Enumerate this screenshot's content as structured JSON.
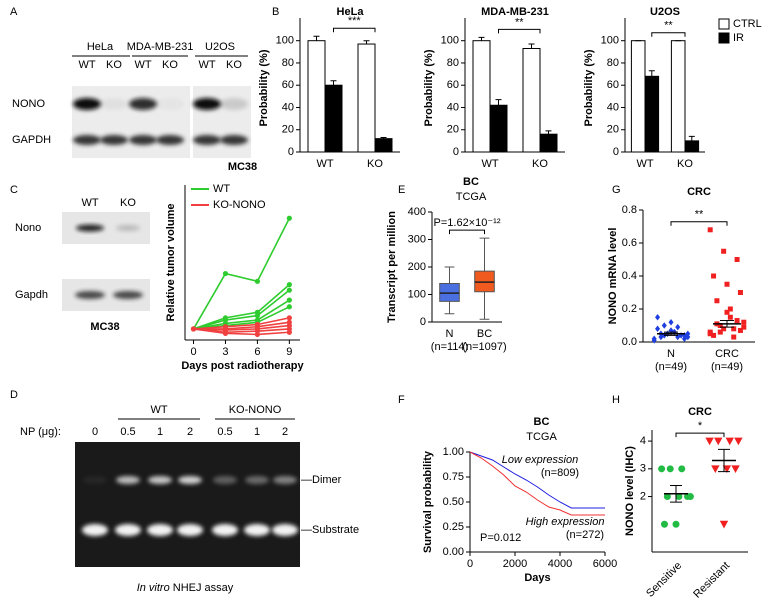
{
  "panel_labels": [
    "A",
    "B",
    "C",
    "D",
    "E",
    "F",
    "G",
    "H"
  ],
  "blot_a": {
    "cell_lines": [
      "HeLa",
      "MDA-MB-231",
      "U2OS"
    ],
    "genotypes": [
      "WT",
      "KO",
      "WT",
      "KO",
      "WT",
      "KO"
    ],
    "rows": [
      "NONO",
      "GAPDH"
    ]
  },
  "blot_c": {
    "genotypes": [
      "WT",
      "KO"
    ],
    "rows": [
      "Nono",
      "Gapdh"
    ],
    "caption": "MC38"
  },
  "gel_d": {
    "groups": [
      "WT",
      "KO-NONO"
    ],
    "lane_title": "NP (μg):",
    "lanes": [
      "0",
      "0.5",
      "1",
      "2",
      "0.5",
      "1",
      "2"
    ],
    "bands": [
      "—Dimer",
      "—Substrate"
    ],
    "caption_italic": "In vitro",
    "caption": " NHEJ assay"
  },
  "chart_data": [
    {
      "type": "bar",
      "title": "HeLa",
      "ylabel": "Probability (%)",
      "categories": [
        "WT",
        "KO"
      ],
      "series": [
        {
          "color": "#ffffff",
          "values": [
            100,
            97
          ],
          "errors": [
            4,
            3
          ]
        },
        {
          "color": "#000000",
          "values": [
            60,
            12
          ],
          "errors": [
            4,
            1
          ]
        }
      ],
      "ylim": [
        0,
        115
      ],
      "yticks": [
        0,
        20,
        40,
        60,
        80,
        100
      ],
      "annotation": "***"
    },
    {
      "type": "bar",
      "title": "MDA-MB-231",
      "ylabel": "Probability (%)",
      "categories": [
        "WT",
        "KO"
      ],
      "series": [
        {
          "color": "#ffffff",
          "values": [
            100,
            93
          ],
          "errors": [
            3,
            4
          ]
        },
        {
          "color": "#000000",
          "values": [
            42,
            16
          ],
          "errors": [
            5,
            3
          ]
        }
      ],
      "ylim": [
        0,
        115
      ],
      "yticks": [
        0,
        20,
        40,
        60,
        80,
        100
      ],
      "annotation": "**"
    },
    {
      "type": "bar",
      "title": "U2OS",
      "ylabel": "Probability (%)",
      "categories": [
        "WT",
        "KO"
      ],
      "series": [
        {
          "name": "CTRL",
          "color": "#ffffff",
          "values": [
            100,
            100
          ],
          "errors": [
            0,
            0
          ]
        },
        {
          "name": "IR",
          "color": "#000000",
          "values": [
            68,
            10
          ],
          "errors": [
            5,
            4
          ]
        }
      ],
      "ylim": [
        0,
        115
      ],
      "yticks": [
        0,
        20,
        40,
        60,
        80,
        100
      ],
      "annotation": "**",
      "legend": "upper right"
    },
    {
      "type": "line",
      "title": "MC38",
      "xlabel": "Days post radiotherapy",
      "ylabel": "Relative tumor volume",
      "x": [
        0,
        3,
        6,
        9
      ],
      "xlim": [
        -0.8,
        10
      ],
      "xticks": [
        0,
        3,
        6,
        9
      ],
      "ylim": [
        0,
        14
      ],
      "markers": true,
      "legend": "upper left",
      "series": [
        {
          "name": "WT",
          "color": "#2ecc2e",
          "values": [
            1,
            6,
            5.3,
            11
          ]
        },
        {
          "color": "#2ecc2e",
          "values": [
            1,
            2,
            2.5,
            5
          ]
        },
        {
          "color": "#2ecc2e",
          "values": [
            1,
            1.8,
            2.2,
            4.5
          ]
        },
        {
          "color": "#2ecc2e",
          "values": [
            1,
            1.5,
            1.8,
            3.6
          ]
        },
        {
          "color": "#2ecc2e",
          "values": [
            1,
            1.3,
            1.6,
            3
          ]
        },
        {
          "name": "KO-NONO",
          "color": "#f04040",
          "values": [
            1,
            1.2,
            1.4,
            2
          ]
        },
        {
          "color": "#f04040",
          "values": [
            1,
            1,
            1.2,
            1.6
          ]
        },
        {
          "color": "#f04040",
          "values": [
            1,
            0.9,
            1,
            1.3
          ]
        },
        {
          "color": "#f04040",
          "values": [
            1,
            0.7,
            0.8,
            1
          ]
        },
        {
          "color": "#f04040",
          "values": [
            1,
            0.6,
            0.5,
            0.7
          ]
        }
      ]
    },
    {
      "type": "box",
      "title": "BC",
      "subtitle": "TCGA",
      "ylabel": "Transcript per million",
      "annotation": "P=1.62×10⁻¹²",
      "categories": [
        "N",
        "BC"
      ],
      "counts": [
        "(n=114)",
        "(n=1097)"
      ],
      "colors": [
        "#4a6fe0",
        "#f05a1e"
      ],
      "boxes": [
        [
          30,
          75,
          105,
          140,
          200
        ],
        [
          10,
          110,
          145,
          185,
          305
        ]
      ],
      "ylim": [
        0,
        400
      ],
      "yticks": [
        0,
        100,
        200,
        300,
        400
      ]
    },
    {
      "type": "line",
      "title": "BC",
      "subtitle": "TCGA",
      "xlabel": "Days",
      "ylabel": "Survival probability",
      "annotation": "P=0.012",
      "x": [
        0,
        500,
        1000,
        1500,
        2000,
        2500,
        3000,
        3500,
        4000,
        4500,
        6000
      ],
      "xlim": [
        0,
        6000
      ],
      "xticks": [
        0,
        2000,
        4000,
        6000
      ],
      "ylim": [
        0,
        1
      ],
      "yticks": [
        {
          "value": 0,
          "label": "0.00"
        },
        {
          "value": 0.25,
          "label": "0.25"
        },
        {
          "value": 0.5,
          "label": "0.50"
        },
        {
          "value": 0.75,
          "label": "0.75"
        },
        {
          "value": 1,
          "label": "1.00"
        }
      ],
      "series": [
        {
          "name": "Low expression",
          "count": "(n=809)",
          "color": "#1f1fe0",
          "values": [
            1,
            0.96,
            0.92,
            0.85,
            0.78,
            0.72,
            0.65,
            0.57,
            0.5,
            0.44,
            0.44
          ]
        },
        {
          "name": "High expression",
          "count": "(n=272)",
          "color": "#f03030",
          "values": [
            1,
            0.94,
            0.86,
            0.77,
            0.66,
            0.6,
            0.52,
            0.45,
            0.42,
            0.37,
            0.37
          ]
        }
      ]
    },
    {
      "type": "strip",
      "title": "CRC",
      "ylabel": "NONO mRNA level",
      "annotation": "**",
      "categories": [
        "N",
        "CRC"
      ],
      "counts": [
        "(n=49)",
        "(n=49)"
      ],
      "colors": [
        "#1f3fe0",
        "#f02020"
      ],
      "markers": [
        "diamond",
        "square"
      ],
      "points": [
        [
          0.02,
          0.03,
          0.04,
          0.05,
          0.06,
          0.03,
          0.02,
          0.07,
          0.08,
          0.04,
          0.05,
          0.01,
          0.09,
          0.1,
          0.03,
          0.06,
          0.05,
          0.04,
          0.12,
          0.15
        ],
        [
          0.05,
          0.08,
          0.1,
          0.12,
          0.2,
          0.25,
          0.3,
          0.35,
          0.4,
          0.5,
          0.55,
          0.68,
          0.03,
          0.06,
          0.09,
          0.15,
          0.11,
          0.07,
          0.18,
          0.04,
          0.13,
          0.08,
          0.06
        ]
      ],
      "means": [
        0.05,
        0.11
      ],
      "errors": [
        0.01,
        0.02
      ],
      "ylim": [
        0,
        0.8
      ],
      "yticks": [
        {
          "value": 0,
          "label": "0.0"
        },
        {
          "value": 0.2,
          "label": "0.2"
        },
        {
          "value": 0.4,
          "label": "0.4"
        },
        {
          "value": 0.6,
          "label": "0.6"
        },
        {
          "value": 0.8,
          "label": "0.8"
        }
      ]
    },
    {
      "type": "strip",
      "title": "CRC",
      "ylabel": "NONO level (IHC)",
      "annotation": "*",
      "categories": [
        "Sensitive",
        "Resistant"
      ],
      "colors": [
        "#22bb44",
        "#f02020"
      ],
      "markers": [
        "circle",
        "triangle-down"
      ],
      "points": [
        [
          3,
          3,
          3,
          2,
          2,
          2,
          2,
          1,
          1
        ],
        [
          4,
          4,
          4,
          4,
          3,
          3,
          3,
          1
        ]
      ],
      "means": [
        2.1,
        3.3
      ],
      "errors": [
        0.3,
        0.4
      ],
      "ylim": [
        0,
        4.4
      ],
      "yticks": [
        2,
        3,
        4
      ]
    }
  ]
}
